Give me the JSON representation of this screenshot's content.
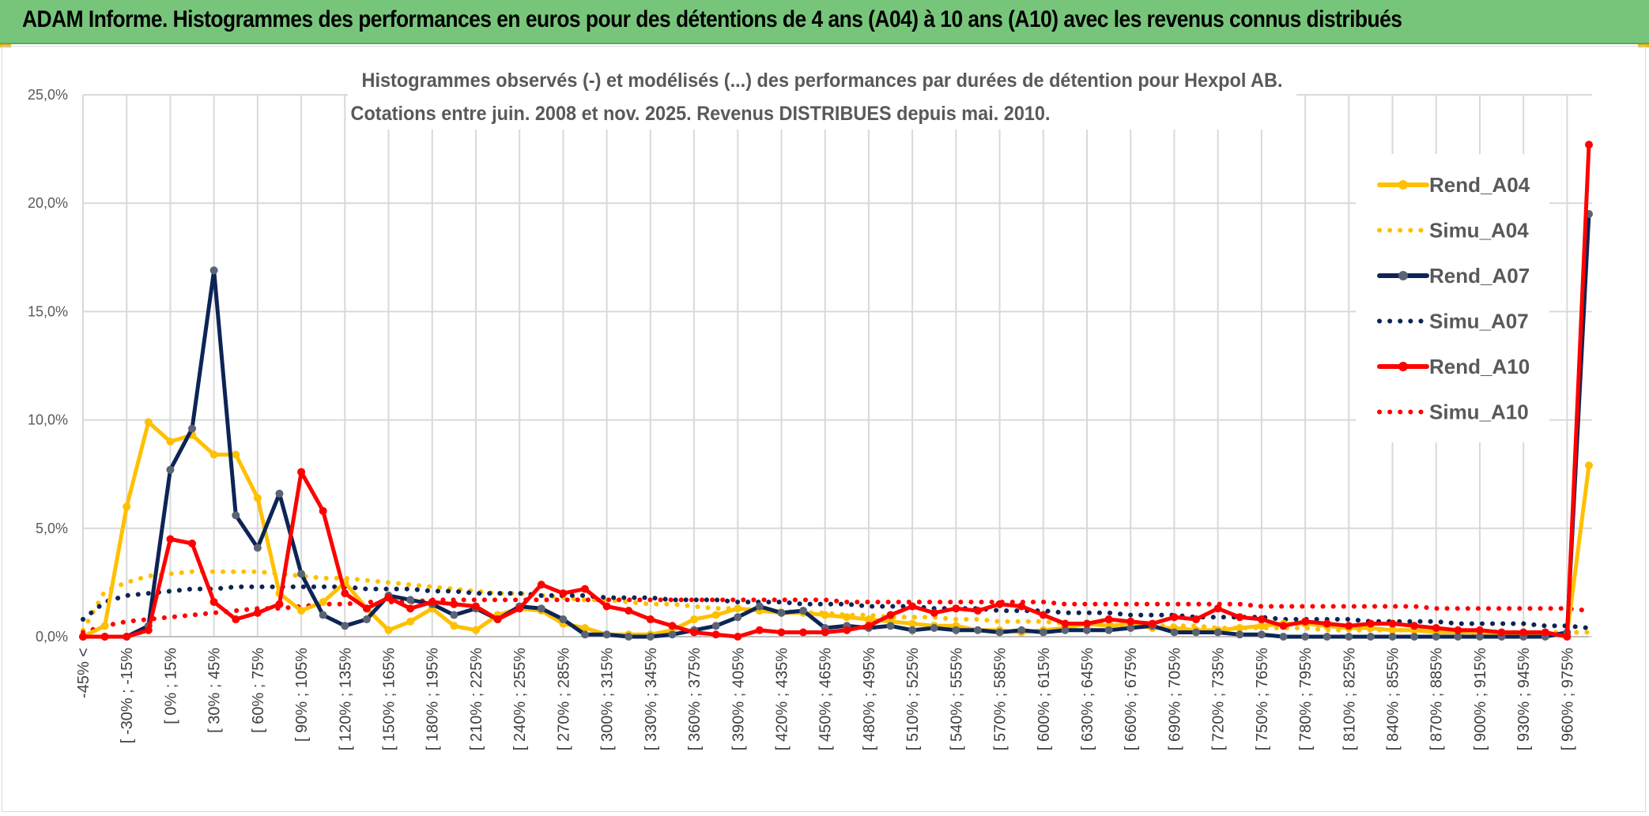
{
  "banner": {
    "title": "ADAM Informe. Histogrammes des performances en euros pour des détentions de 4 ans (A04) à 10 ans (A10) avec les revenus connus distribués"
  },
  "colors": {
    "banner_bg": "#77c57b",
    "A04": "#ffc000",
    "A07": "#0d2455",
    "A10": "#ff0000",
    "marker_A04": "#ffc000",
    "marker_A07": "#5a6475",
    "marker_A10": "#ff0000",
    "grid": "#d9d9d9"
  },
  "chart_data": {
    "type": "line",
    "title_line1": "Histogrammes observés (-) et modélisés (...) des performances par durées de détention pour Hexpol AB.",
    "title_line2": "Cotations entre juin. 2008 et nov. 2025. Revenus DISTRIBUES depuis mai. 2010.",
    "ylim": [
      0,
      25
    ],
    "y_ticks": [
      "0,0%",
      "5,0%",
      "10,0%",
      "15,0%",
      "20,0%",
      "25,0%"
    ],
    "x_tick_labels": [
      "-45% <",
      "[ -30% ; -15%",
      "[ 0% ; 15%",
      "[ 30% ; 45%",
      "[ 60% ; 75%",
      "[ 90% ; 105%",
      "[ 120% ; 135%",
      "[ 150% ; 165%",
      "[ 180% ; 195%",
      "[ 210% ; 225%",
      "[ 240% ; 255%",
      "[ 270% ; 285%",
      "[ 300% ; 315%",
      "[ 330% ; 345%",
      "[ 360% ; 375%",
      "[ 390% ; 405%",
      "[ 420% ; 435%",
      "[ 450% ; 465%",
      "[ 480% ; 495%",
      "[ 510% ; 525%",
      "[ 540% ; 555%",
      "[ 570% ; 585%",
      "[ 600% ; 615%",
      "[ 630% ; 645%",
      "[ 660% ; 675%",
      "[ 690% ; 705%",
      "[ 720% ; 735%",
      "[ 750% ; 765%",
      "[ 780% ; 795%",
      "[ 810% ; 825%",
      "[ 840% ; 855%",
      "[ 870% ; 885%",
      "[ 900% ; 915%",
      "[ 930% ; 945%",
      "[ 960% ; 975%"
    ],
    "num_bins": 70,
    "series": [
      {
        "name": "Rend_A04",
        "style": "solid",
        "values": [
          0,
          0.5,
          6.0,
          9.9,
          9.0,
          9.3,
          8.4,
          8.4,
          6.4,
          2.0,
          1.2,
          1.6,
          2.5,
          1.3,
          0.3,
          0.7,
          1.3,
          0.5,
          0.3,
          1.0,
          1.3,
          1.2,
          0.6,
          0.4,
          0.1,
          0.1,
          0.1,
          0.3,
          0.8,
          1.0,
          1.3,
          1.2,
          1.1,
          1.1,
          1.0,
          0.9,
          0.8,
          0.7,
          0.6,
          0.5,
          0.5,
          0.3,
          0.3,
          0.2,
          0.3,
          0.4,
          0.6,
          0.5,
          0.6,
          0.4,
          0.4,
          0.3,
          0.3,
          0.4,
          0.5,
          0.6,
          0.6,
          0.5,
          0.4,
          0.4,
          0.3,
          0.3,
          0.2,
          0.2,
          0.2,
          0.1,
          0.1,
          0.1,
          0.1,
          7.9
        ]
      },
      {
        "name": "Simu_A04",
        "style": "dotted",
        "values": [
          0.3,
          2.1,
          2.5,
          2.8,
          2.9,
          3.0,
          3.0,
          3.0,
          3.0,
          2.9,
          2.8,
          2.7,
          2.7,
          2.6,
          2.5,
          2.4,
          2.3,
          2.2,
          2.1,
          2.0,
          2.0,
          1.9,
          1.8,
          1.7,
          1.7,
          1.6,
          1.5,
          1.5,
          1.4,
          1.3,
          1.3,
          1.2,
          1.2,
          1.1,
          1.1,
          1.0,
          1.0,
          0.9,
          0.9,
          0.9,
          0.8,
          0.8,
          0.7,
          0.7,
          0.7,
          0.6,
          0.6,
          0.6,
          0.5,
          0.5,
          0.5,
          0.5,
          0.4,
          0.4,
          0.4,
          0.4,
          0.4,
          0.3,
          0.3,
          0.3,
          0.3,
          0.3,
          0.3,
          0.2,
          0.2,
          0.2,
          0.2,
          0.2,
          0.2,
          0.2
        ]
      },
      {
        "name": "Rend_A07",
        "style": "solid",
        "values": [
          0,
          0,
          0,
          0.5,
          7.7,
          9.6,
          16.9,
          5.6,
          4.1,
          6.6,
          2.9,
          1.0,
          0.5,
          0.8,
          1.9,
          1.7,
          1.5,
          1.0,
          1.3,
          0.8,
          1.4,
          1.3,
          0.8,
          0.1,
          0.1,
          0,
          0,
          0.1,
          0.3,
          0.5,
          0.9,
          1.4,
          1.1,
          1.2,
          0.4,
          0.5,
          0.4,
          0.5,
          0.3,
          0.4,
          0.3,
          0.3,
          0.2,
          0.3,
          0.2,
          0.3,
          0.3,
          0.3,
          0.4,
          0.5,
          0.2,
          0.2,
          0.2,
          0.1,
          0.1,
          0,
          0,
          0,
          0,
          0,
          0,
          0,
          0,
          0,
          0,
          0,
          0,
          0,
          0.2,
          19.5
        ]
      },
      {
        "name": "Simu_A07",
        "style": "dotted",
        "values": [
          0.8,
          1.6,
          1.9,
          2.0,
          2.1,
          2.2,
          2.2,
          2.3,
          2.3,
          2.3,
          2.3,
          2.3,
          2.3,
          2.2,
          2.2,
          2.2,
          2.1,
          2.1,
          2.0,
          2.0,
          2.0,
          1.9,
          1.9,
          1.9,
          1.8,
          1.8,
          1.8,
          1.7,
          1.7,
          1.7,
          1.6,
          1.6,
          1.6,
          1.5,
          1.5,
          1.5,
          1.4,
          1.4,
          1.4,
          1.3,
          1.3,
          1.3,
          1.2,
          1.2,
          1.2,
          1.1,
          1.1,
          1.1,
          1.0,
          1.0,
          1.0,
          0.9,
          0.9,
          0.9,
          0.9,
          0.8,
          0.8,
          0.8,
          0.8,
          0.7,
          0.7,
          0.7,
          0.7,
          0.6,
          0.6,
          0.6,
          0.6,
          0.5,
          0.5,
          0.4
        ]
      },
      {
        "name": "Rend_A10",
        "style": "solid",
        "values": [
          0,
          0,
          0,
          0.3,
          4.5,
          4.3,
          1.6,
          0.8,
          1.1,
          1.5,
          7.6,
          5.8,
          2.0,
          1.3,
          1.8,
          1.3,
          1.6,
          1.5,
          1.4,
          0.8,
          1.3,
          2.4,
          2.0,
          2.2,
          1.4,
          1.2,
          0.8,
          0.5,
          0.2,
          0.1,
          0,
          0.3,
          0.2,
          0.2,
          0.2,
          0.3,
          0.5,
          1.0,
          1.4,
          1.1,
          1.3,
          1.2,
          1.5,
          1.4,
          1.0,
          0.6,
          0.6,
          0.8,
          0.7,
          0.6,
          0.9,
          0.8,
          1.3,
          0.9,
          0.8,
          0.5,
          0.7,
          0.6,
          0.5,
          0.6,
          0.6,
          0.5,
          0.4,
          0.3,
          0.3,
          0.2,
          0.2,
          0.2,
          0,
          22.7
        ]
      },
      {
        "name": "Simu_A10",
        "style": "dotted",
        "values": [
          0.2,
          0.5,
          0.7,
          0.8,
          0.9,
          1.0,
          1.1,
          1.2,
          1.3,
          1.3,
          1.4,
          1.5,
          1.5,
          1.6,
          1.6,
          1.6,
          1.7,
          1.7,
          1.7,
          1.7,
          1.7,
          1.7,
          1.7,
          1.7,
          1.7,
          1.7,
          1.7,
          1.7,
          1.7,
          1.7,
          1.7,
          1.7,
          1.7,
          1.7,
          1.7,
          1.6,
          1.6,
          1.6,
          1.6,
          1.6,
          1.6,
          1.6,
          1.6,
          1.6,
          1.6,
          1.5,
          1.5,
          1.5,
          1.5,
          1.5,
          1.5,
          1.5,
          1.5,
          1.5,
          1.4,
          1.4,
          1.4,
          1.4,
          1.4,
          1.4,
          1.4,
          1.4,
          1.3,
          1.3,
          1.3,
          1.3,
          1.3,
          1.3,
          1.3,
          1.2
        ]
      }
    ],
    "legend": [
      "Rend_A04",
      "Simu_A04",
      "Rend_A07",
      "Simu_A07",
      "Rend_A10",
      "Simu_A10"
    ],
    "legend_position": "right",
    "grid": true
  }
}
